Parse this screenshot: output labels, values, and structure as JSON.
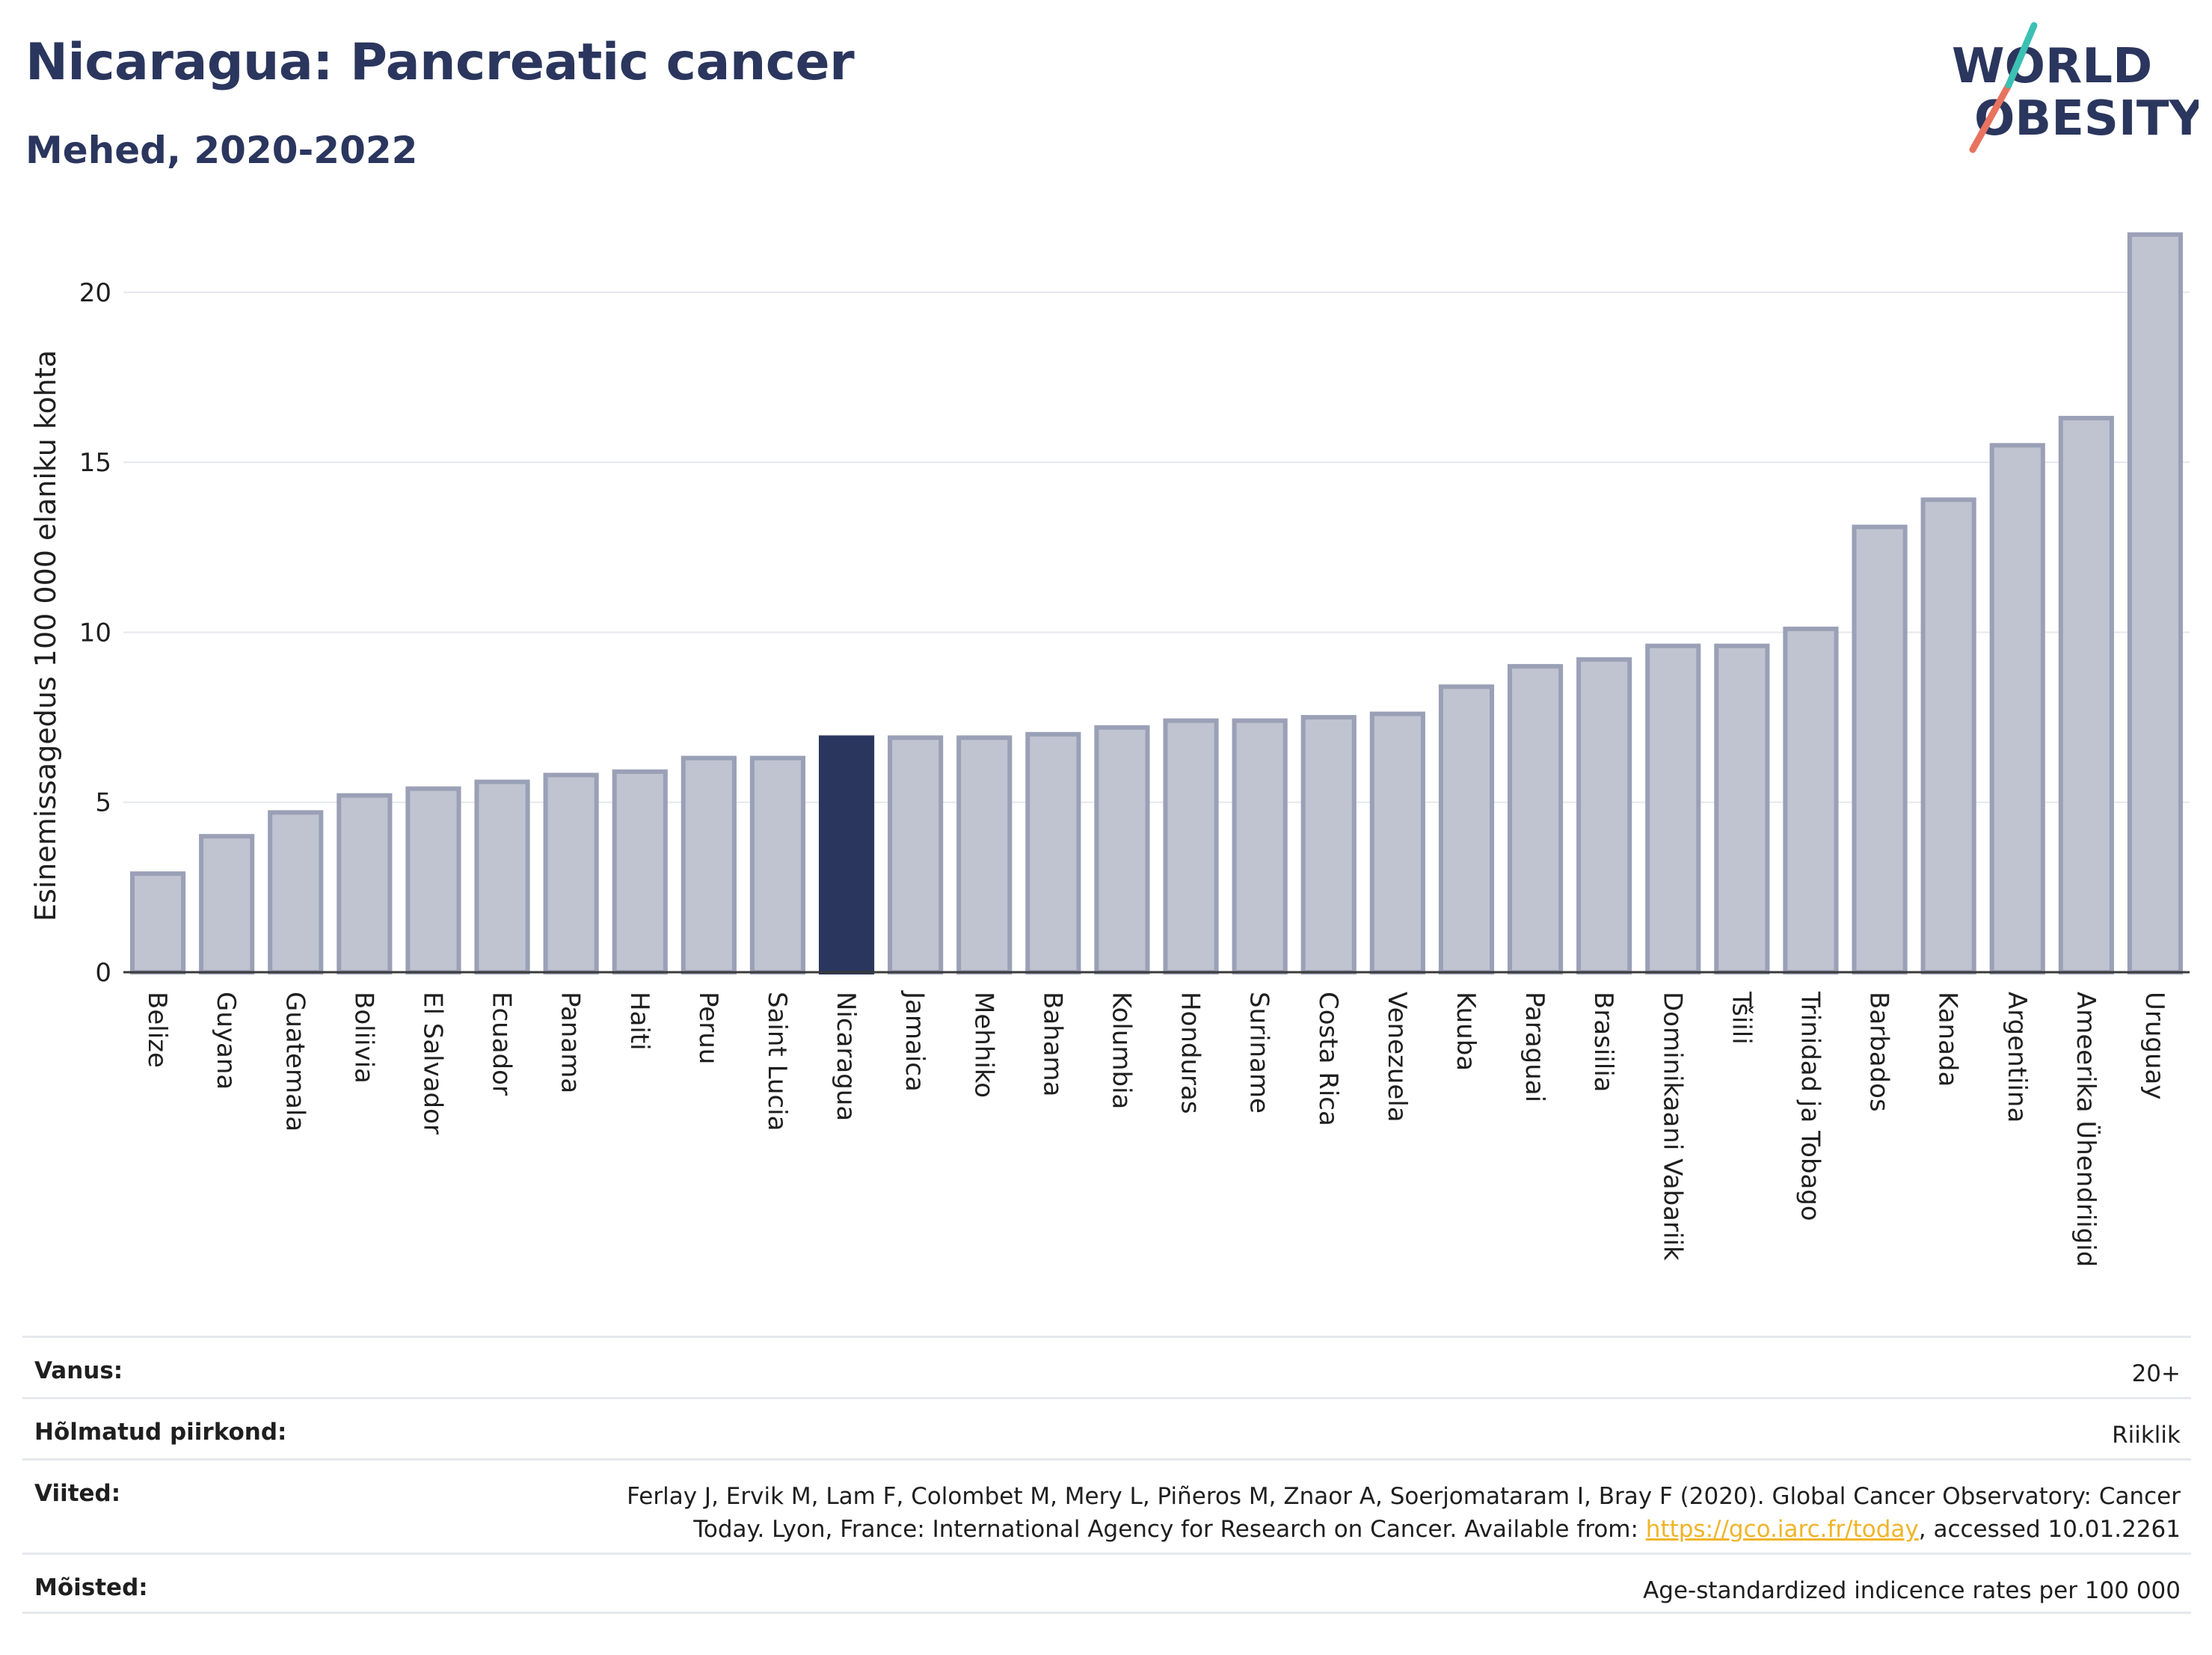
{
  "header": {
    "title": "Nicaragua: Pancreatic cancer",
    "subtitle": "Mehed, 2020-2022"
  },
  "logo": {
    "line1": "WORLD",
    "line2": "OBESITY"
  },
  "colors": {
    "bar_fill": "#c0c4d0",
    "bar_stroke": "#9aa0b6",
    "highlight": "#2b365e",
    "grid": "#e6e8ee",
    "title": "#2b365e",
    "logo_red": "#e8735f",
    "logo_teal": "#3cc0b4",
    "link": "#f0b429"
  },
  "chart_data": {
    "type": "bar",
    "ylabel": "Esinemissagedus 100 000 elaniku kohta",
    "ylim": [
      0,
      22
    ],
    "yticks": [
      0,
      5,
      10,
      15,
      20
    ],
    "grid": true,
    "highlight": "Nicaragua",
    "categories": [
      "Belize",
      "Guyana",
      "Guatemala",
      "Boliivia",
      "El Salvador",
      "Ecuador",
      "Panama",
      "Haiti",
      "Peruu",
      "Saint Lucia",
      "Nicaragua",
      "Jamaica",
      "Mehhiko",
      "Bahama",
      "Kolumbia",
      "Honduras",
      "Suriname",
      "Costa Rica",
      "Venezuela",
      "Kuuba",
      "Paraguai",
      "Brasiilia",
      "Dominikaani Vabariik",
      "Tšiili",
      "Trinidad ja Tobago",
      "Barbados",
      "Kanada",
      "Argentiina",
      "Ameerika Ühendriigid",
      "Uruguay"
    ],
    "values": [
      2.9,
      4.0,
      4.7,
      5.2,
      5.4,
      5.6,
      5.8,
      5.9,
      6.3,
      6.3,
      6.9,
      6.9,
      6.9,
      7.0,
      7.2,
      7.4,
      7.4,
      7.5,
      7.6,
      8.4,
      9.0,
      9.2,
      9.6,
      9.6,
      10.1,
      13.1,
      13.9,
      15.5,
      16.3,
      21.7
    ]
  },
  "meta": {
    "rows": [
      {
        "label": "Vanus:",
        "value": "20+"
      },
      {
        "label": "Hõlmatud piirkond:",
        "value": "Riiklik"
      },
      {
        "label": "Viited:",
        "value_pre": "Ferlay J, Ervik M, Lam F, Colombet M, Mery L, Piñeros M, Znaor A, Soerjomataram I, Bray F (2020). Global Cancer Observatory: Cancer Today. Lyon, France: International Agency for Research on Cancer. Available from: ",
        "link": "https://gco.iarc.fr/today",
        "value_post": ", accessed 10.01.2261"
      },
      {
        "label": "Mõisted:",
        "value": "Age-standardized indicence rates per 100 000"
      }
    ]
  }
}
